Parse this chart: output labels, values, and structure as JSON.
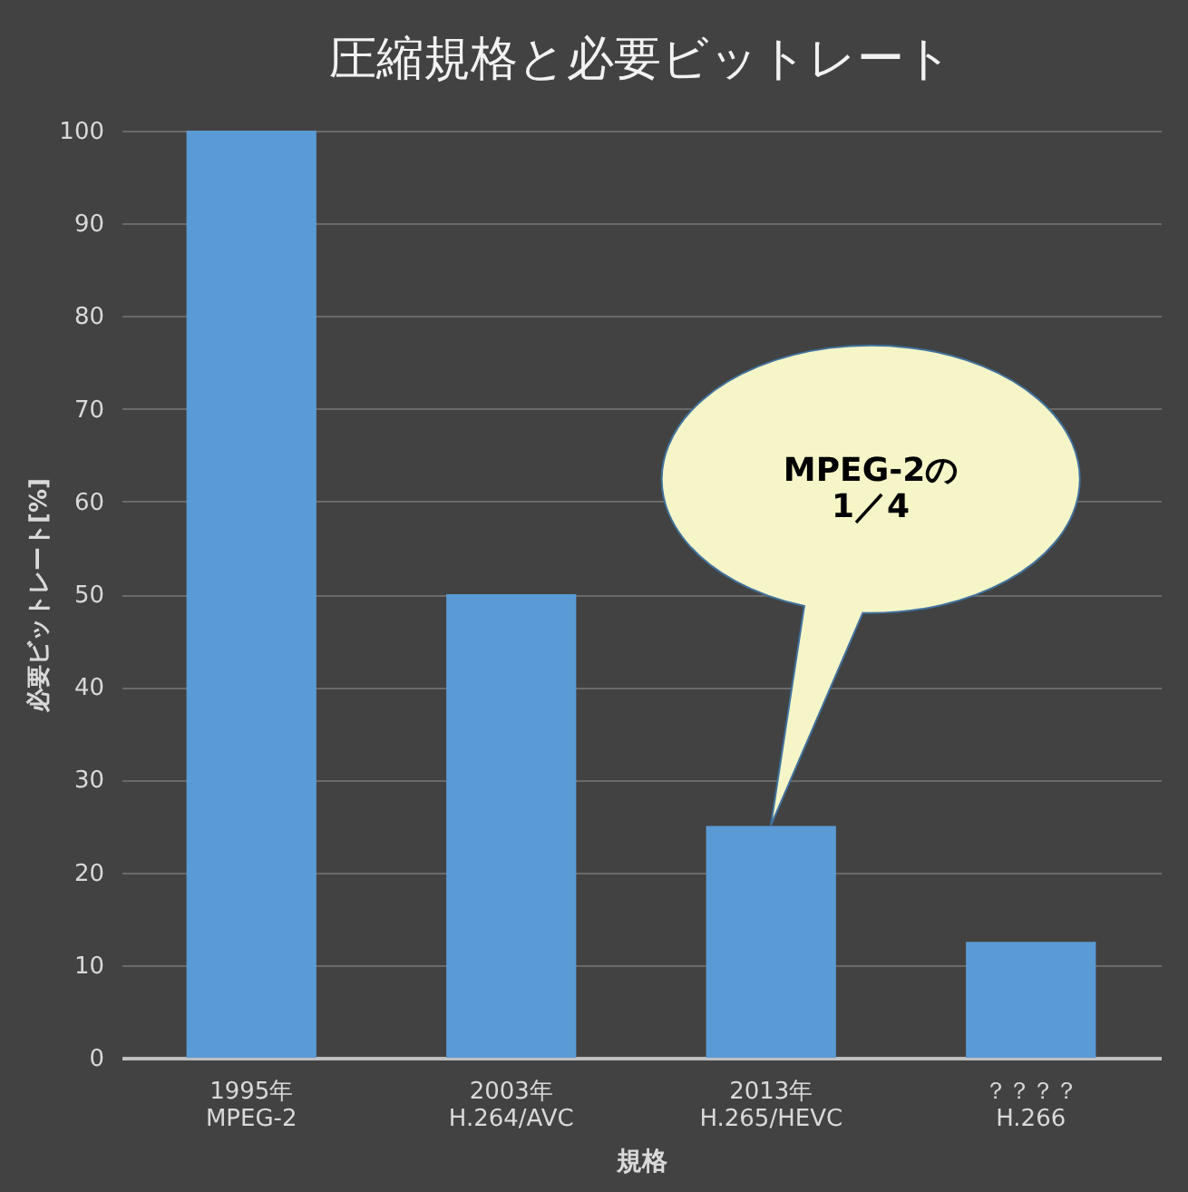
{
  "chart_data": {
    "type": "bar",
    "title": "圧縮規格と必要ビットレート",
    "xlabel": "規格",
    "ylabel": "必要ビットレート[%]",
    "categories": [
      "1995年\nMPEG-2",
      "2003年\nH.264/AVC",
      "2013年\nH.265/HEVC",
      "？？？？\nH.266"
    ],
    "values": [
      100,
      50,
      25,
      12.5
    ],
    "color": "#5b9bd5",
    "ylim": [
      0,
      100
    ],
    "yticks": [
      0,
      10,
      20,
      30,
      40,
      50,
      60,
      70,
      80,
      90,
      100
    ],
    "grid": "y",
    "annotations": [
      "MPEG-2の\n1／4"
    ]
  }
}
